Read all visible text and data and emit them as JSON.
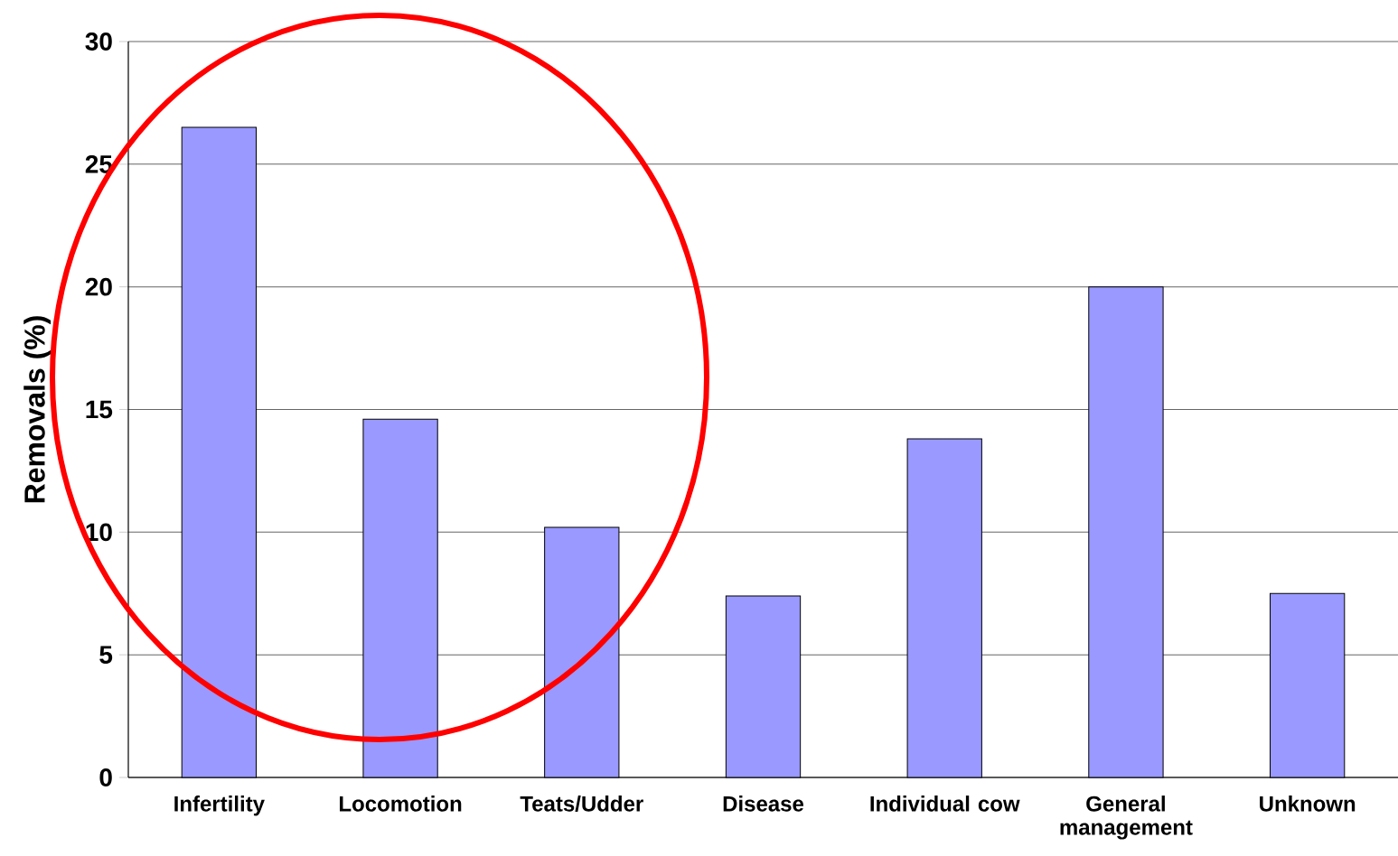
{
  "chart_data": {
    "type": "bar",
    "ylabel": "Removals (%)",
    "categories": [
      "Infertility",
      "Locomotion",
      "Teats/Udder",
      "Disease",
      "Individual cow",
      "General management",
      "Unknown"
    ],
    "values": [
      26.5,
      14.6,
      10.2,
      7.4,
      13.8,
      20.0,
      7.5
    ],
    "color": "#9999ff",
    "ylim": [
      0,
      30
    ],
    "yticks": [
      0,
      5,
      10,
      15,
      20,
      25,
      30
    ],
    "grid": "y"
  }
}
